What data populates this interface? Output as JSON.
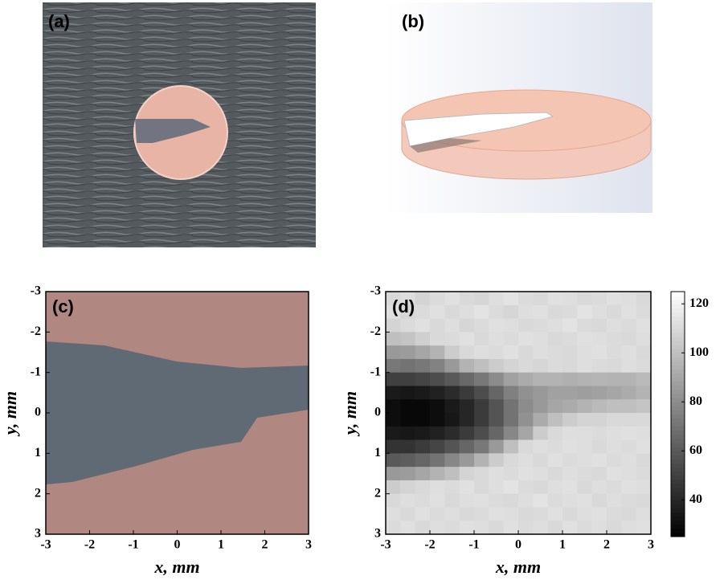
{
  "panels": {
    "a": "(a)",
    "b": "(b)"
  },
  "chart_data": [
    {
      "type": "image",
      "label": "(c)",
      "xlabel": "x, mm",
      "ylabel": "y, mm",
      "xlim": [
        -3,
        3
      ],
      "ylim": [
        -3,
        3
      ],
      "y_reversed": true,
      "xticks": [
        -3,
        -2,
        -1,
        0,
        1,
        2,
        3
      ],
      "yticks": [
        -3,
        -2,
        -1,
        0,
        1,
        2,
        3
      ]
    },
    {
      "type": "heatmap",
      "label": "(d)",
      "xlabel": "x, mm",
      "ylabel": "y, mm",
      "xlim": [
        -3,
        3
      ],
      "ylim": [
        -3,
        3
      ],
      "y_reversed": true,
      "xticks": [
        -3,
        -2,
        -1,
        0,
        1,
        2,
        3
      ],
      "yticks": [
        -3,
        -2,
        -1,
        0,
        1,
        2,
        3
      ],
      "zlim": [
        25,
        125
      ],
      "zticks": [
        40,
        60,
        80,
        100,
        120
      ],
      "z": [
        [
          110,
          112,
          108,
          111,
          113,
          110,
          109,
          112,
          114,
          111,
          110,
          113,
          112,
          110,
          111,
          113,
          112,
          110
        ],
        [
          112,
          109,
          111,
          113,
          110,
          112,
          114,
          111,
          109,
          112,
          113,
          110,
          111,
          114,
          112,
          110,
          113,
          111
        ],
        [
          108,
          111,
          113,
          110,
          112,
          109,
          111,
          113,
          112,
          110,
          111,
          112,
          114,
          111,
          110,
          112,
          111,
          113
        ],
        [
          100,
          102,
          106,
          110,
          111,
          113,
          110,
          112,
          111,
          113,
          112,
          110,
          111,
          113,
          112,
          111,
          110,
          112
        ],
        [
          85,
          86,
          90,
          95,
          105,
          110,
          112,
          111,
          113,
          110,
          112,
          111,
          110,
          112,
          113,
          111,
          112,
          110
        ],
        [
          72,
          70,
          72,
          76,
          85,
          95,
          100,
          105,
          108,
          110,
          109,
          111,
          110,
          112,
          111,
          110,
          112,
          111
        ],
        [
          50,
          50,
          52,
          55,
          60,
          66,
          72,
          80,
          88,
          92,
          95,
          95,
          94,
          95,
          96,
          95,
          95,
          98
        ],
        [
          35,
          34,
          35,
          38,
          42,
          48,
          55,
          65,
          75,
          82,
          85,
          88,
          88,
          87,
          88,
          90,
          92,
          95
        ],
        [
          30,
          28,
          28,
          30,
          35,
          40,
          48,
          58,
          70,
          80,
          85,
          90,
          92,
          95,
          98,
          100,
          100,
          102
        ],
        [
          30,
          28,
          28,
          30,
          34,
          40,
          48,
          58,
          70,
          82,
          92,
          100,
          105,
          108,
          108,
          110,
          110,
          110
        ],
        [
          35,
          34,
          35,
          38,
          42,
          48,
          55,
          65,
          78,
          90,
          105,
          110,
          112,
          112,
          111,
          112,
          113,
          112
        ],
        [
          45,
          45,
          48,
          52,
          58,
          65,
          72,
          85,
          100,
          110,
          112,
          111,
          113,
          112,
          110,
          112,
          111,
          113
        ],
        [
          60,
          62,
          65,
          70,
          78,
          85,
          95,
          105,
          110,
          112,
          110,
          113,
          111,
          112,
          113,
          111,
          112,
          110
        ],
        [
          85,
          86,
          90,
          95,
          100,
          108,
          110,
          112,
          111,
          113,
          112,
          110,
          112,
          111,
          110,
          113,
          112,
          111
        ],
        [
          105,
          108,
          110,
          112,
          111,
          113,
          110,
          112,
          114,
          111,
          110,
          112,
          113,
          110,
          112,
          111,
          113,
          112
        ],
        [
          110,
          112,
          111,
          113,
          110,
          112,
          113,
          111,
          110,
          112,
          114,
          111,
          112,
          113,
          110,
          112,
          111,
          110
        ],
        [
          112,
          110,
          113,
          111,
          112,
          110,
          111,
          113,
          112,
          110,
          111,
          113,
          110,
          112,
          113,
          111,
          110,
          112
        ],
        [
          111,
          113,
          110,
          112,
          111,
          113,
          112,
          110,
          113,
          111,
          112,
          110,
          113,
          111,
          112,
          110,
          112,
          113
        ]
      ]
    }
  ]
}
